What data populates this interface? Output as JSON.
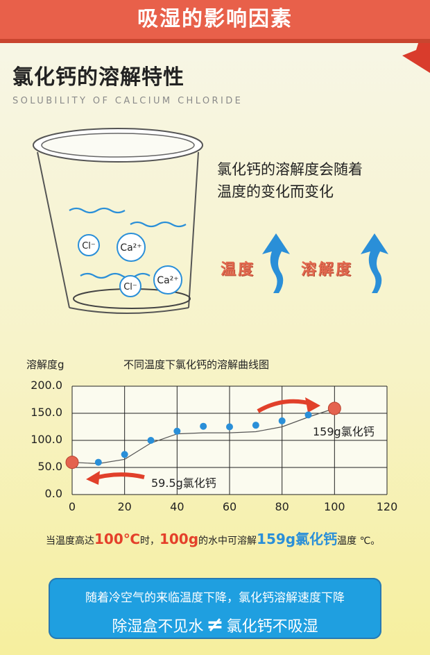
{
  "banner": {
    "title": "吸湿的影响因素",
    "color": "#e8604a"
  },
  "section": {
    "title": "氯化钙的溶解特性",
    "subtitle": "SOLUBILITY OF CALCIUM CHLORIDE"
  },
  "beaker": {
    "ions": [
      "Cl⁻",
      "Ca²⁺",
      "Ca²⁺",
      "Cl⁻"
    ]
  },
  "description": {
    "line1": "氯化钙的溶解度会随着",
    "line2": "温度的变化而变化"
  },
  "indicators": {
    "temperature": "温度",
    "solubility": "溶解度",
    "arrow_color": "#2a8fd8"
  },
  "chart_data": {
    "type": "scatter",
    "title": "不同温度下氯化钙的溶解曲线图",
    "ylabel": "溶解度g",
    "xlabel": "",
    "xlim": [
      0,
      120
    ],
    "ylim": [
      0,
      200
    ],
    "x_ticks": [
      "0",
      "20",
      "40",
      "60",
      "80",
      "100",
      "120"
    ],
    "y_ticks": [
      "0.0",
      "50.0",
      "100.0",
      "150.0",
      "200.0"
    ],
    "points": [
      {
        "x": 10,
        "y": 59.5
      },
      {
        "x": 20,
        "y": 74
      },
      {
        "x": 30,
        "y": 100
      },
      {
        "x": 40,
        "y": 117
      },
      {
        "x": 50,
        "y": 126
      },
      {
        "x": 60,
        "y": 125
      },
      {
        "x": 70,
        "y": 128
      },
      {
        "x": 80,
        "y": 136
      },
      {
        "x": 90,
        "y": 147
      }
    ],
    "highlights": [
      {
        "x": 0,
        "y": 59.5
      },
      {
        "x": 100,
        "y": 159
      }
    ],
    "curve": [
      {
        "x": 0,
        "y": 59.5
      },
      {
        "x": 10,
        "y": 57
      },
      {
        "x": 20,
        "y": 65
      },
      {
        "x": 30,
        "y": 95
      },
      {
        "x": 40,
        "y": 112
      },
      {
        "x": 50,
        "y": 114
      },
      {
        "x": 60,
        "y": 114
      },
      {
        "x": 70,
        "y": 116
      },
      {
        "x": 80,
        "y": 125
      },
      {
        "x": 90,
        "y": 143
      },
      {
        "x": 100,
        "y": 159
      }
    ],
    "annotations": {
      "low": "59.5g氯化钙",
      "high": "159g氯化钙"
    },
    "point_color": "#2a8fd8",
    "highlight_color": "#e4634f",
    "grid": true
  },
  "note": {
    "part1": "当温度高达",
    "temp": "100℃",
    "part2": "时，",
    "water": "100g",
    "part3": "的水中可溶解",
    "amount": "159g氯化钙",
    "part4": "温度 ℃。"
  },
  "callout": {
    "line1": "随着冷空气的来临温度下降，氯化钙溶解速度下降",
    "line2_left": "除湿盒不见水",
    "neq": "≠",
    "line2_right": "氯化钙不吸湿",
    "color": "#1f9fe0"
  }
}
